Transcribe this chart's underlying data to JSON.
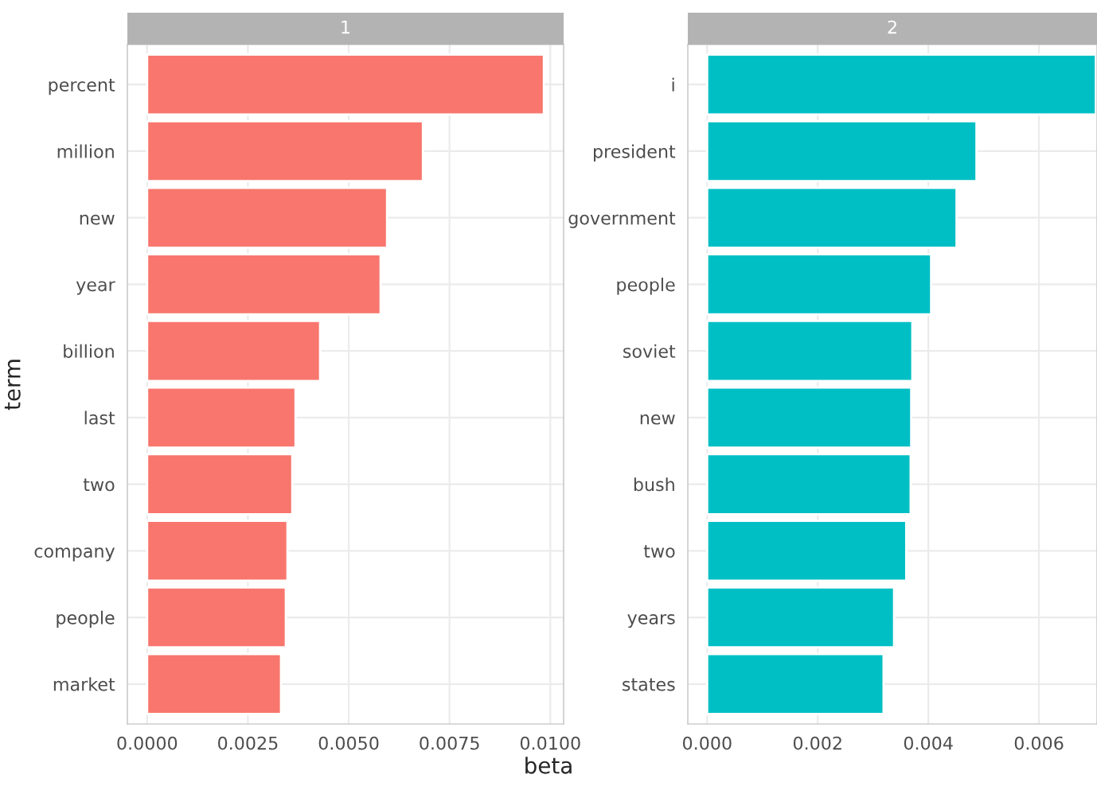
{
  "chart_data": [
    {
      "type": "bar",
      "orientation": "horizontal",
      "title": "1",
      "ylabel": "term",
      "xlabel": "beta",
      "categories": [
        "percent",
        "million",
        "new",
        "year",
        "billion",
        "last",
        "two",
        "company",
        "people",
        "market"
      ],
      "series": [
        {
          "color": "#f8766d",
          "values": [
            0.00984,
            0.00684,
            0.00595,
            0.00579,
            0.00429,
            0.00368,
            0.0036,
            0.00348,
            0.00344,
            0.00332
          ]
        }
      ],
      "xlim": [
        -0.00049,
        0.01033
      ],
      "xticks": [
        {
          "value": 0,
          "label": "0.0000"
        },
        {
          "value": 0.0025,
          "label": "0.0025"
        },
        {
          "value": 0.005,
          "label": "0.0050"
        },
        {
          "value": 0.0075,
          "label": "0.0075"
        },
        {
          "value": 0.01,
          "label": "0.0100"
        }
      ],
      "grid": true
    },
    {
      "type": "bar",
      "orientation": "horizontal",
      "title": "2",
      "categories": [
        "i",
        "president",
        "government",
        "people",
        "soviet",
        "new",
        "bush",
        "two",
        "years",
        "states"
      ],
      "series": [
        {
          "color": "#00bfc4",
          "values": [
            0.00703,
            0.00487,
            0.00451,
            0.00405,
            0.00371,
            0.00369,
            0.00368,
            0.0036,
            0.00338,
            0.00319
          ]
        }
      ],
      "xlim": [
        -0.00035,
        0.00705
      ],
      "xticks": [
        {
          "value": 0,
          "label": "0.000"
        },
        {
          "value": 0.002,
          "label": "0.002"
        },
        {
          "value": 0.004,
          "label": "0.004"
        },
        {
          "value": 0.006,
          "label": "0.006"
        }
      ],
      "grid": true
    }
  ]
}
